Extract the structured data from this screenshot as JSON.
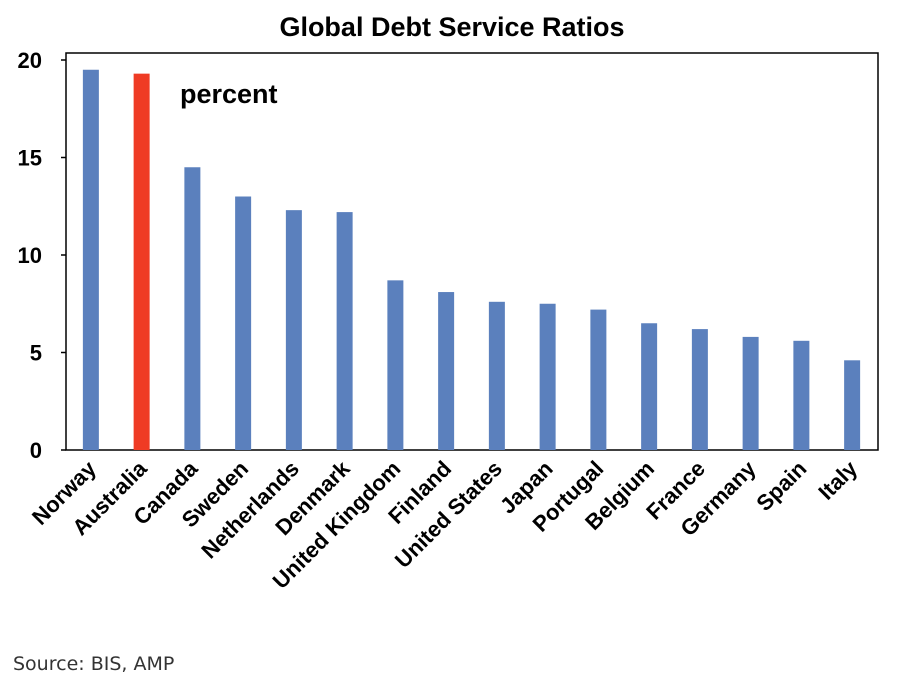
{
  "chart_data": {
    "type": "bar",
    "title": "Global Debt Service Ratios",
    "annotation": "percent",
    "categories": [
      "Norway",
      "Australia",
      "Canada",
      "Sweden",
      "Netherlands",
      "Denmark",
      "United Kingdom",
      "Finland",
      "United States",
      "Japan",
      "Portugal",
      "Belgium",
      "France",
      "Germany",
      "Spain",
      "Italy"
    ],
    "values": [
      19.5,
      19.3,
      14.5,
      13.0,
      12.3,
      12.2,
      8.7,
      8.1,
      7.6,
      7.5,
      7.2,
      6.5,
      6.2,
      5.8,
      5.6,
      4.6
    ],
    "highlight": "Australia",
    "ylim": [
      0,
      20
    ],
    "yticks": [
      0,
      5,
      10,
      15,
      20
    ],
    "grid": false,
    "legend": "none",
    "colors": {
      "bar": "#5b80bd",
      "highlight": "#ef3b24"
    }
  },
  "source": "Source: BIS, AMP"
}
